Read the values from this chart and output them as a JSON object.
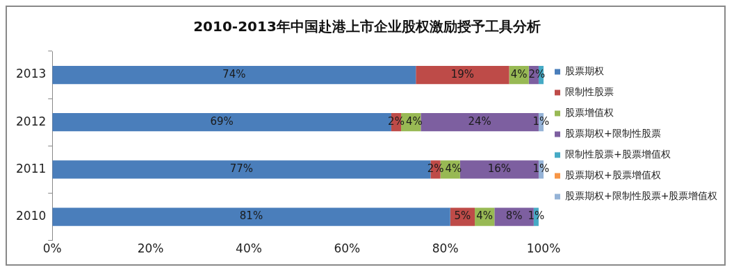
{
  "chart_data": {
    "type": "bar",
    "orientation": "horizontal",
    "stacked": true,
    "title": "2010-2013年中国赴港上市企业股权激励授予工具分析",
    "categories": [
      "2013",
      "2012",
      "2011",
      "2010"
    ],
    "xlim": [
      0,
      100
    ],
    "xticks": [
      {
        "value": 0,
        "label": "0%"
      },
      {
        "value": 20,
        "label": "20%"
      },
      {
        "value": 40,
        "label": "40%"
      },
      {
        "value": 60,
        "label": "60%"
      },
      {
        "value": 80,
        "label": "80%"
      },
      {
        "value": 100,
        "label": "100%"
      }
    ],
    "grid": false,
    "legend": "right",
    "series": [
      {
        "name": "股票期权",
        "color": "#4a7ebb",
        "values": [
          74,
          69,
          77,
          81
        ],
        "value_labels": [
          "74%",
          "69%",
          "77%",
          "81%"
        ]
      },
      {
        "name": "限制性股票",
        "color": "#be4b48",
        "values": [
          19,
          2,
          2,
          5
        ],
        "value_labels": [
          "19%",
          "2%",
          "2%",
          "5%"
        ]
      },
      {
        "name": "股票增值权",
        "color": "#98b954",
        "values": [
          4,
          4,
          4,
          4
        ],
        "value_labels": [
          "4%",
          "4%",
          "4%",
          "4%"
        ]
      },
      {
        "name": "股票期权+限制性股票",
        "color": "#7d5fa0",
        "values": [
          2,
          24,
          16,
          8
        ],
        "value_labels": [
          "2%",
          "24%",
          "16%",
          "8%"
        ]
      },
      {
        "name": "限制性股票+股票增值权",
        "color": "#46aac5",
        "values": [
          1,
          null,
          null,
          1
        ],
        "value_labels": [
          null,
          null,
          null,
          "1%"
        ]
      },
      {
        "name": "股票期权+股票增值权",
        "color": "#f79646",
        "values": [
          null,
          null,
          null,
          null
        ],
        "value_labels": [
          null,
          null,
          null,
          null
        ]
      },
      {
        "name": "股票期权+限制性股票+股票增值权",
        "color": "#95b3d7",
        "values": [
          null,
          1,
          1,
          null
        ],
        "value_labels": [
          null,
          "1%",
          "1%",
          null
        ]
      }
    ]
  }
}
